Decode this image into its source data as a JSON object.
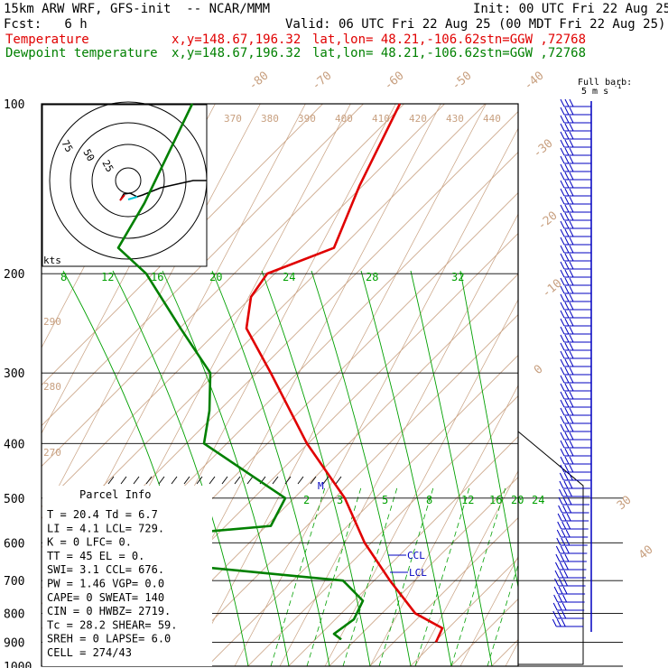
{
  "header": {
    "model": "15km ARW WRF, GFS-init  -- NCAR/MMM",
    "init": "Init: 00 UTC Fri 22 Aug 25",
    "fcst": "Fcst:   6 h",
    "valid": "Valid: 06 UTC Fri 22 Aug 25 (00 MDT Fri 22 Aug 25)",
    "temp_label": "Temperature",
    "dew_label": "Dewpoint temperature",
    "xy": "x,y=148.67,196.32",
    "latlon": "lat,lon= 48.21,-106.62",
    "stn": "stn=GGW ,72768"
  },
  "barb_legend": {
    "title": "Full barb:",
    "value": "5 m s",
    "sup": "-1"
  },
  "pressure_labels": [
    "100",
    "200",
    "300",
    "400",
    "500",
    "600",
    "700",
    "800",
    "900",
    "1000"
  ],
  "theta_labels": [
    "370",
    "380",
    "390",
    "400",
    "410",
    "420",
    "430",
    "440",
    "290",
    "280",
    "270"
  ],
  "temp_iso_labels": [
    "-80",
    "-70",
    "-60",
    "-50",
    "-40",
    "-30",
    "-20",
    "-10",
    "0",
    "30",
    "40"
  ],
  "mixing_ratio_labels": [
    "8",
    "12",
    "16",
    "20",
    "24",
    "28",
    "32"
  ],
  "saturated_mr_labels": [
    "2",
    "3",
    "5",
    "8",
    "12",
    "16",
    "20",
    "24"
  ],
  "hodograph": {
    "unit": "kts",
    "rings": [
      "75",
      "50",
      "25"
    ]
  },
  "markers": {
    "m": "M",
    "ccl": "CCL",
    "lcl": "LCL"
  },
  "parcel_info": {
    "title": "Parcel Info",
    "rows": [
      "T  =   20.4 Td =   6.7",
      "LI =    4.1 LCL=  729.",
      "K  =      0 LFC=     0.",
      "TT =     45 EL =     0.",
      "SWI=    3.1 CCL=   676.",
      "PW =   1.46 VGP=    0.0",
      "CAPE=     0 SWEAT=  140",
      "CIN =     0 HWBZ= 2719.",
      "Tc =   28.2 SHEAR=  59.",
      "SREH =    0 LAPSE=  6.0",
      "CELL = 274/43"
    ]
  },
  "colors": {
    "temp": "#e00000",
    "dew": "#00a000",
    "frame": "#000000",
    "iso": "#c8a080",
    "wind": "#0000c0"
  },
  "chart_data": {
    "type": "line",
    "title": "",
    "yscale": "log pressure (hPa)",
    "series": [
      {
        "name": "Temperature",
        "points": [
          [
            100,
            -45
          ],
          [
            150,
            -48
          ],
          [
            180,
            -51
          ],
          [
            200,
            -56
          ],
          [
            250,
            -55
          ],
          [
            300,
            -44
          ],
          [
            400,
            -26
          ],
          [
            500,
            -11
          ],
          [
            600,
            2
          ],
          [
            700,
            8
          ],
          [
            800,
            18
          ],
          [
            850,
            25
          ],
          [
            900,
            20.4
          ]
        ]
      },
      {
        "name": "Dewpoint temperature",
        "points": [
          [
            100,
            -80
          ],
          [
            180,
            -84
          ],
          [
            200,
            -85
          ],
          [
            250,
            -72
          ],
          [
            300,
            -74
          ],
          [
            400,
            -50
          ],
          [
            500,
            -24
          ],
          [
            600,
            -30
          ],
          [
            650,
            -10
          ],
          [
            700,
            -18
          ],
          [
            800,
            8
          ],
          [
            850,
            3
          ],
          [
            900,
            6.7
          ]
        ]
      }
    ]
  }
}
